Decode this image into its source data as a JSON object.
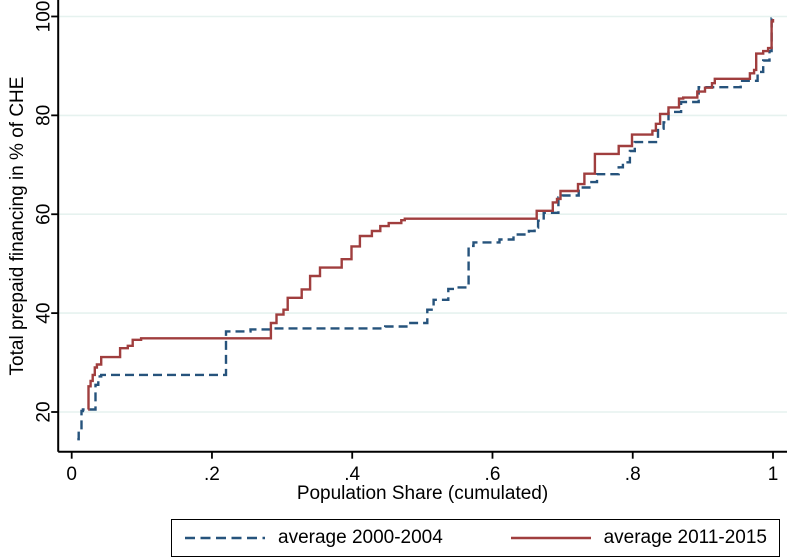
{
  "figure_title": "",
  "chart_data": {
    "type": "line",
    "subtype": "step",
    "title": "",
    "xlabel": "Population Share (cumulated)",
    "ylabel": "Total prepaid financing in % of CHE",
    "xlim": [
      -0.02,
      1.02
    ],
    "ylim": [
      12,
      102
    ],
    "grid": "horizontal",
    "gridline_color": "#e6f2ef",
    "axis_color": "#000000",
    "background_color": "#ffffff",
    "legend_position": "bottom",
    "x_ticks": [
      {
        "v": 0,
        "label": "0"
      },
      {
        "v": 0.2,
        "label": ".2"
      },
      {
        "v": 0.4,
        "label": ".4"
      },
      {
        "v": 0.6,
        "label": ".6"
      },
      {
        "v": 0.8,
        "label": ".8"
      },
      {
        "v": 1,
        "label": "1"
      }
    ],
    "y_ticks": [
      {
        "v": 20,
        "label": "20"
      },
      {
        "v": 40,
        "label": "40"
      },
      {
        "v": 60,
        "label": "60"
      },
      {
        "v": 80,
        "label": "80"
      },
      {
        "v": 100,
        "label": "100"
      }
    ],
    "series": [
      {
        "name": "average 2000-2004",
        "color": "#26537c",
        "style": "dashed",
        "points": [
          [
            0.008,
            14.5
          ],
          [
            0.01,
            16.3
          ],
          [
            0.014,
            20.2
          ],
          [
            0.016,
            20.5
          ],
          [
            0.034,
            25.5
          ],
          [
            0.038,
            27.2
          ],
          [
            0.042,
            27.5
          ],
          [
            0.22,
            36.3
          ],
          [
            0.255,
            36.7
          ],
          [
            0.283,
            36.9
          ],
          [
            0.447,
            37.3
          ],
          [
            0.48,
            38.0
          ],
          [
            0.507,
            40.7
          ],
          [
            0.516,
            42.7
          ],
          [
            0.537,
            44.9
          ],
          [
            0.546,
            45.2
          ],
          [
            0.566,
            53.6
          ],
          [
            0.573,
            54.3
          ],
          [
            0.61,
            54.9
          ],
          [
            0.63,
            55.9
          ],
          [
            0.652,
            56.6
          ],
          [
            0.66,
            57.3
          ],
          [
            0.665,
            58.7
          ],
          [
            0.673,
            60.3
          ],
          [
            0.694,
            63.4
          ],
          [
            0.7,
            63.8
          ],
          [
            0.723,
            65.4
          ],
          [
            0.741,
            66.5
          ],
          [
            0.749,
            68.1
          ],
          [
            0.78,
            69.5
          ],
          [
            0.786,
            70.5
          ],
          [
            0.796,
            72.8
          ],
          [
            0.803,
            74.6
          ],
          [
            0.836,
            77.3
          ],
          [
            0.844,
            78.6
          ],
          [
            0.851,
            80.7
          ],
          [
            0.869,
            82.7
          ],
          [
            0.894,
            85.7
          ],
          [
            0.954,
            87.0
          ],
          [
            0.978,
            88.8
          ],
          [
            0.986,
            91.1
          ],
          [
            0.995,
            93.0
          ],
          [
            0.998,
            99.6
          ],
          [
            1.0,
            99.8
          ]
        ]
      },
      {
        "name": "average 2011-2015",
        "color": "#a03e3e",
        "style": "solid",
        "points": [
          [
            0.0235,
            20.5
          ],
          [
            0.024,
            25.2
          ],
          [
            0.027,
            26.3
          ],
          [
            0.03,
            27.5
          ],
          [
            0.033,
            29.0
          ],
          [
            0.036,
            29.6
          ],
          [
            0.042,
            31.1
          ],
          [
            0.069,
            32.9
          ],
          [
            0.08,
            33.4
          ],
          [
            0.087,
            34.6
          ],
          [
            0.099,
            34.9
          ],
          [
            0.284,
            38.0
          ],
          [
            0.292,
            39.7
          ],
          [
            0.302,
            40.7
          ],
          [
            0.308,
            43.1
          ],
          [
            0.328,
            44.8
          ],
          [
            0.34,
            47.5
          ],
          [
            0.354,
            49.2
          ],
          [
            0.385,
            50.9
          ],
          [
            0.399,
            53.5
          ],
          [
            0.411,
            55.6
          ],
          [
            0.428,
            56.6
          ],
          [
            0.44,
            57.6
          ],
          [
            0.452,
            58.2
          ],
          [
            0.47,
            58.8
          ],
          [
            0.475,
            59.1
          ],
          [
            0.663,
            60.7
          ],
          [
            0.686,
            62.4
          ],
          [
            0.692,
            63.1
          ],
          [
            0.697,
            64.7
          ],
          [
            0.722,
            66.1
          ],
          [
            0.731,
            68.2
          ],
          [
            0.746,
            72.2
          ],
          [
            0.78,
            73.8
          ],
          [
            0.799,
            76.1
          ],
          [
            0.828,
            76.9
          ],
          [
            0.833,
            78.3
          ],
          [
            0.839,
            80.3
          ],
          [
            0.851,
            81.6
          ],
          [
            0.866,
            83.4
          ],
          [
            0.872,
            83.6
          ],
          [
            0.892,
            84.8
          ],
          [
            0.903,
            85.6
          ],
          [
            0.913,
            86.5
          ],
          [
            0.917,
            87.4
          ],
          [
            0.967,
            88.5
          ],
          [
            0.973,
            89.2
          ],
          [
            0.976,
            92.5
          ],
          [
            0.986,
            93.0
          ],
          [
            0.993,
            93.6
          ],
          [
            0.998,
            99.0
          ],
          [
            1.0,
            99.5
          ]
        ]
      }
    ]
  }
}
